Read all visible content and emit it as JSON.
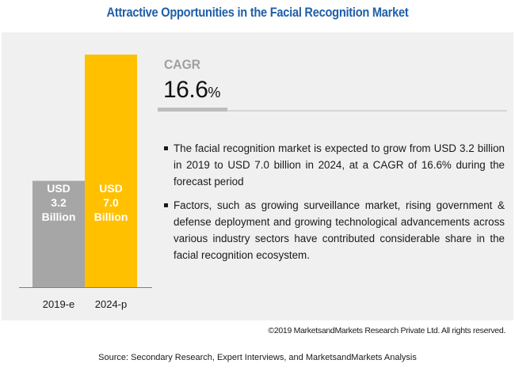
{
  "title": "Attractive Opportunities in the Facial Recognition Market",
  "colors": {
    "title": "#1f5fa8",
    "panel_bg": "#f0f0f0",
    "bar_2019": "#a6a6a6",
    "bar_2024": "#ffc000",
    "axis": "#7f7f7f"
  },
  "chart_data": {
    "type": "bar",
    "title": "",
    "xlabel": "",
    "ylabel": "",
    "categories": [
      "2019-e",
      "2024-p"
    ],
    "values": [
      3.2,
      7.0
    ],
    "unit": "USD Billion",
    "data_labels": [
      [
        "USD",
        "3.2",
        "Billion"
      ],
      [
        "USD",
        "7.0",
        "Billion"
      ]
    ],
    "ylim": [
      0,
      7.0
    ],
    "grid": false,
    "legend": "none"
  },
  "cagr": {
    "label": "CAGR",
    "value": "16.6",
    "suffix": "%"
  },
  "bullets": [
    "The facial recognition market is expected to grow from USD 3.2 billion in 2019 to USD 7.0 billion in 2024, at a CAGR of 16.6% during the forecast period",
    "Factors, such as growing surveillance market, rising government & defense deployment and growing technological advancements across various industry sectors have contributed considerable share in the facial recognition ecosystem."
  ],
  "copyright": "©2019 MarketsandMarkets Research Private Ltd. All rights reserved.",
  "source": "Source: Secondary Research, Expert Interviews, and MarketsandMarkets Analysis"
}
